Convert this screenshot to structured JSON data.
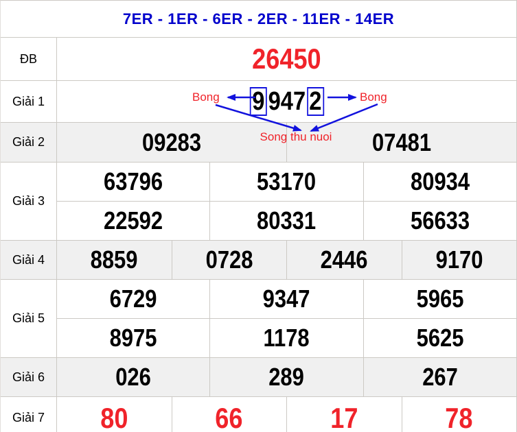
{
  "header": {
    "title": "7ER - 1ER - 6ER - 2ER - 11ER - 14ER"
  },
  "annotations": {
    "bong_left": "Bong",
    "bong_right": "Bong",
    "song_thu_nuoi": "Song thu nuoi"
  },
  "colors": {
    "header_blue": "#0000cc",
    "arrow_blue": "#1212dd",
    "highlight_red": "#f0232a",
    "alt_row_gray": "#f0f0f0",
    "border_gray": "#ccc9c4"
  },
  "prizes": [
    {
      "key": "db",
      "label": "ĐB",
      "rows": [
        [
          "26450"
        ]
      ]
    },
    {
      "key": "g1",
      "label": "Giải 1",
      "rows": [
        [
          "99472"
        ]
      ],
      "boxed_digits": [
        0,
        4
      ]
    },
    {
      "key": "g2",
      "label": "Giải 2",
      "rows": [
        [
          "09283",
          "07481"
        ]
      ]
    },
    {
      "key": "g3",
      "label": "Giải 3",
      "rows": [
        [
          "63796",
          "53170",
          "80934"
        ],
        [
          "22592",
          "80331",
          "56633"
        ]
      ]
    },
    {
      "key": "g4",
      "label": "Giải 4",
      "rows": [
        [
          "8859",
          "0728",
          "2446",
          "9170"
        ]
      ]
    },
    {
      "key": "g5",
      "label": "Giải 5",
      "rows": [
        [
          "6729",
          "9347",
          "5965"
        ],
        [
          "8975",
          "1178",
          "5625"
        ]
      ]
    },
    {
      "key": "g6",
      "label": "Giải 6",
      "rows": [
        [
          "026",
          "289",
          "267"
        ]
      ]
    },
    {
      "key": "g7",
      "label": "Giải 7",
      "rows": [
        [
          "80",
          "66",
          "17",
          "78"
        ]
      ]
    }
  ],
  "alt_rows": [
    "g2",
    "g4",
    "g6"
  ]
}
